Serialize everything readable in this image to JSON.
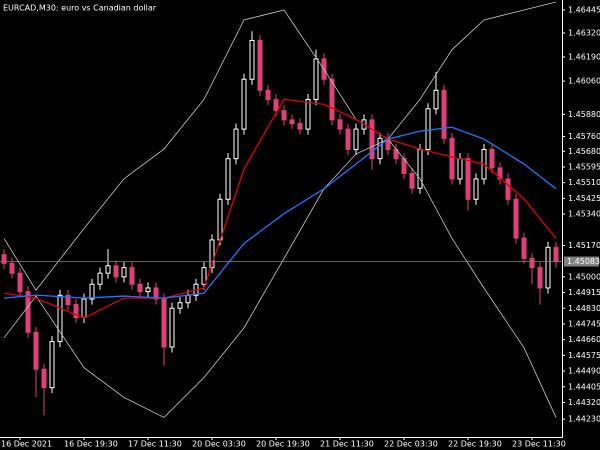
{
  "chart_data": {
    "type": "candlestick",
    "title": "EURCAD,M30:  euro vs Canadian dollar",
    "up_color": "#ffffff",
    "down_color": "#e0407a",
    "grid": false,
    "ylim": [
      1.44133,
      1.46499
    ],
    "yticks": [
      {
        "value": 1.46445,
        "label": "1.46445"
      },
      {
        "value": 1.4632,
        "label": "1.46320"
      },
      {
        "value": 1.4619,
        "label": "1.46190"
      },
      {
        "value": 1.4606,
        "label": "1.46060"
      },
      {
        "value": 1.4588,
        "label": "1.45880"
      },
      {
        "value": 1.4576,
        "label": "1.45760"
      },
      {
        "value": 1.4568,
        "label": "1.45680"
      },
      {
        "value": 1.45595,
        "label": "1.45595"
      },
      {
        "value": 1.4551,
        "label": "1.45510"
      },
      {
        "value": 1.45425,
        "label": "1.45425"
      },
      {
        "value": 1.4534,
        "label": "1.45340"
      },
      {
        "value": 1.4517,
        "label": "1.45170"
      },
      {
        "value": 1.45,
        "label": "1.45000"
      },
      {
        "value": 1.44915,
        "label": "1.44915"
      },
      {
        "value": 1.4483,
        "label": "1.44830"
      },
      {
        "value": 1.44745,
        "label": "1.44745"
      },
      {
        "value": 1.4466,
        "label": "1.44660"
      },
      {
        "value": 1.44575,
        "label": "1.44575"
      },
      {
        "value": 1.4449,
        "label": "1.44490"
      },
      {
        "value": 1.44405,
        "label": "1.44405"
      },
      {
        "value": 1.4432,
        "label": "1.44320"
      },
      {
        "value": 1.4423,
        "label": "1.44230"
      }
    ],
    "current_price": {
      "value": 1.45083,
      "label": "1.45083",
      "color": "#808080"
    },
    "categories": [
      null,
      null,
      "16 Dec 2021",
      null,
      null,
      null,
      null,
      null,
      null,
      null,
      "16 Dec 19:30",
      null,
      null,
      null,
      null,
      null,
      null,
      null,
      "17 Dec 11:30",
      null,
      null,
      null,
      null,
      null,
      null,
      null,
      "20 Dec 03:30",
      null,
      null,
      null,
      null,
      null,
      null,
      null,
      "20 Dec 19:30",
      null,
      null,
      null,
      null,
      null,
      null,
      null,
      "21 Dec 11:30",
      null,
      null,
      null,
      null,
      null,
      null,
      null,
      "22 Dec 03:30",
      null,
      null,
      null,
      null,
      null,
      null,
      null,
      "22 Dec 19:30",
      null,
      null,
      null,
      null,
      null,
      null,
      null,
      "23 Dec 11:30",
      null,
      null,
      null
    ],
    "candles": {
      "open": [
        1.4512,
        1.45073,
        1.4502,
        1.4492,
        1.447,
        1.445,
        1.444,
        1.4465,
        1.449,
        1.4485,
        1.4478,
        1.4488,
        1.4496,
        1.4502,
        1.4506,
        1.45,
        1.4505,
        1.4496,
        1.4492,
        1.4494,
        1.4488,
        1.4462,
        1.4483,
        1.4486,
        1.449,
        1.4496,
        1.4505,
        1.452,
        1.4542,
        1.4564,
        1.458,
        1.4607,
        1.4628,
        1.4601,
        1.4596,
        1.459,
        1.4585,
        1.4583,
        1.458,
        1.4596,
        1.4618,
        1.4607,
        1.4585,
        1.458,
        1.4569,
        1.458,
        1.4585,
        1.4564,
        1.4575,
        1.4569,
        1.4564,
        1.4556,
        1.4548,
        1.4569,
        1.4591,
        1.4601,
        1.4575,
        1.4553,
        1.4564,
        1.4542,
        1.4553,
        1.4569,
        1.4559,
        1.4553,
        1.4542,
        1.4521,
        1.451,
        1.4505,
        1.4494,
        1.4516
      ],
      "high": [
        1.4515,
        1.45103,
        1.4505,
        1.4495,
        1.4473,
        1.4453,
        1.4468,
        1.4493,
        1.4493,
        1.4488,
        1.4491,
        1.4499,
        1.4505,
        1.4515,
        1.4509,
        1.4508,
        1.4508,
        1.4499,
        1.4497,
        1.4497,
        1.4491,
        1.4486,
        1.4489,
        1.4493,
        1.4499,
        1.4508,
        1.4523,
        1.4545,
        1.4567,
        1.4583,
        1.461,
        1.4633,
        1.4631,
        1.4604,
        1.4599,
        1.4593,
        1.4588,
        1.4586,
        1.4599,
        1.4623,
        1.4621,
        1.461,
        1.4588,
        1.4583,
        1.4583,
        1.4588,
        1.4588,
        1.4578,
        1.4578,
        1.4572,
        1.4567,
        1.4559,
        1.4572,
        1.4594,
        1.4611,
        1.4604,
        1.4578,
        1.4567,
        1.4567,
        1.4556,
        1.4572,
        1.4572,
        1.4562,
        1.4556,
        1.4545,
        1.4524,
        1.4513,
        1.4508,
        1.4519,
        1.4519
      ],
      "low": [
        1.45043,
        1.4499,
        1.4489,
        1.4467,
        1.4435,
        1.4425,
        1.4437,
        1.4462,
        1.4482,
        1.4475,
        1.4475,
        1.4485,
        1.4493,
        1.4499,
        1.4497,
        1.4497,
        1.4493,
        1.4489,
        1.4489,
        1.4485,
        1.4452,
        1.4459,
        1.448,
        1.4483,
        1.4487,
        1.4493,
        1.4502,
        1.4517,
        1.4539,
        1.4561,
        1.4577,
        1.4604,
        1.4598,
        1.4593,
        1.4587,
        1.4582,
        1.458,
        1.4577,
        1.4577,
        1.4593,
        1.4604,
        1.4582,
        1.4577,
        1.4566,
        1.4566,
        1.4577,
        1.4558,
        1.4561,
        1.4566,
        1.4561,
        1.4553,
        1.4545,
        1.4545,
        1.4566,
        1.4588,
        1.4572,
        1.455,
        1.455,
        1.4536,
        1.4539,
        1.455,
        1.4556,
        1.455,
        1.4539,
        1.4518,
        1.4507,
        1.4496,
        1.4485,
        1.4491,
        1.4505
      ],
      "close": [
        1.45073,
        1.4502,
        1.4492,
        1.447,
        1.445,
        1.444,
        1.4465,
        1.449,
        1.4485,
        1.4478,
        1.4488,
        1.4496,
        1.4502,
        1.4506,
        1.45,
        1.4505,
        1.4496,
        1.4492,
        1.4494,
        1.4488,
        1.4462,
        1.4483,
        1.4486,
        1.449,
        1.4496,
        1.4505,
        1.452,
        1.4542,
        1.4564,
        1.458,
        1.4607,
        1.4628,
        1.4601,
        1.4596,
        1.459,
        1.4585,
        1.4583,
        1.458,
        1.4596,
        1.4618,
        1.4607,
        1.4585,
        1.458,
        1.4569,
        1.458,
        1.4585,
        1.4564,
        1.4575,
        1.4569,
        1.4564,
        1.4556,
        1.4548,
        1.4569,
        1.4591,
        1.4601,
        1.4575,
        1.4553,
        1.4564,
        1.4542,
        1.4553,
        1.4569,
        1.4559,
        1.4553,
        1.4542,
        1.4521,
        1.451,
        1.4505,
        1.4494,
        1.4516,
        1.45083
      ]
    },
    "series": [
      {
        "color": "#c8c8c8",
        "x": [
          0,
          4,
          10,
          15,
          20,
          25,
          30,
          35,
          40,
          44,
          48,
          52,
          56,
          60,
          65,
          69
        ],
        "values": [
          1.45208,
          1.44928,
          1.45262,
          1.45531,
          1.45692,
          1.45961,
          1.46391,
          1.46445,
          1.46123,
          1.45853,
          1.45746,
          1.45961,
          1.4623,
          1.46391,
          1.46445,
          1.46488
        ]
      },
      {
        "color": "#c8c8c8",
        "x": [
          0,
          4,
          10,
          15,
          20,
          25,
          30,
          35,
          40,
          44,
          48,
          52,
          56,
          60,
          65,
          69
        ],
        "values": [
          1.4467,
          1.44896,
          1.44508,
          1.44347,
          1.44239,
          1.44455,
          1.44724,
          1.451,
          1.45477,
          1.45665,
          1.45746,
          1.45531,
          1.45208,
          1.44939,
          1.44616,
          1.44239
        ]
      },
      {
        "color": "#e00000",
        "x": [
          0,
          4,
          10,
          15,
          20,
          25,
          30,
          35,
          40,
          44,
          48,
          52,
          56,
          60,
          65,
          69
        ],
        "values": [
          1.44912,
          1.44885,
          1.44777,
          1.44885,
          1.44885,
          1.44939,
          1.45584,
          1.45961,
          1.45934,
          1.45853,
          1.45746,
          1.45692,
          1.45649,
          1.45611,
          1.45423,
          1.45208
        ]
      },
      {
        "color": "#1e78ff",
        "x": [
          0,
          4,
          10,
          15,
          20,
          25,
          30,
          35,
          40,
          44,
          48,
          52,
          56,
          60,
          65,
          69
        ],
        "values": [
          1.44885,
          1.44901,
          1.44885,
          1.44896,
          1.44885,
          1.44912,
          1.45181,
          1.45342,
          1.45477,
          1.45611,
          1.45746,
          1.45789,
          1.4581,
          1.45746,
          1.45611,
          1.45477
        ]
      }
    ]
  }
}
